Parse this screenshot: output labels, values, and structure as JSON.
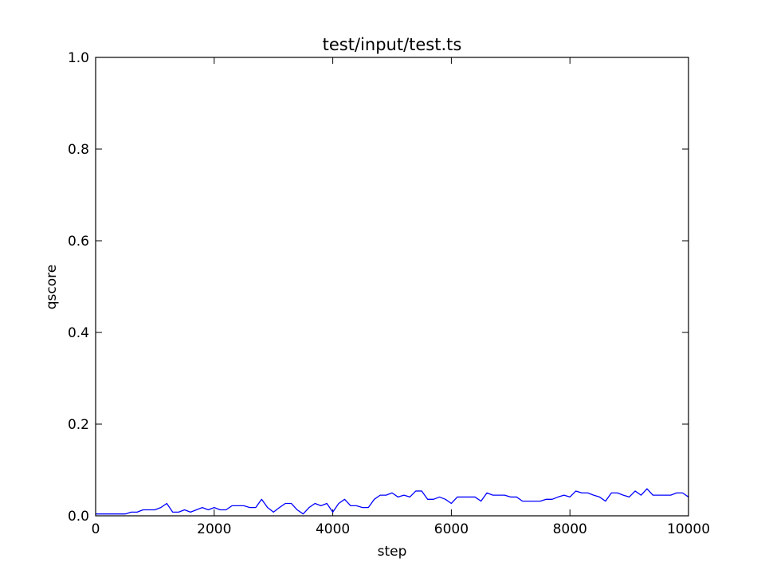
{
  "chart_data": {
    "type": "line",
    "title": "test/input/test.ts",
    "xlabel": "step",
    "ylabel": "qscore",
    "xlim": [
      0,
      10000
    ],
    "ylim": [
      0,
      1.0
    ],
    "xticks": [
      0,
      2000,
      4000,
      6000,
      8000,
      10000
    ],
    "xtick_labels": [
      "0",
      "2000",
      "4000",
      "6000",
      "8000",
      "10000"
    ],
    "yticks": [
      0,
      0.2,
      0.4,
      0.6,
      0.8,
      1.0
    ],
    "ytick_labels": [
      "0.0",
      "0.2",
      "0.4",
      "0.6",
      "0.8",
      "1.0"
    ],
    "grid": false,
    "line_color": "#0000ff",
    "series": [
      {
        "x": [
          0,
          100,
          200,
          300,
          400,
          500,
          600,
          700,
          800,
          900,
          1000,
          1100,
          1200,
          1300,
          1400,
          1500,
          1600,
          1700,
          1800,
          1900,
          2000,
          2100,
          2200,
          2300,
          2400,
          2500,
          2600,
          2700,
          2800,
          2900,
          3000,
          3100,
          3200,
          3300,
          3400,
          3500,
          3600,
          3700,
          3800,
          3900,
          4000,
          4100,
          4200,
          4300,
          4400,
          4500,
          4600,
          4700,
          4800,
          4900,
          5000,
          5100,
          5200,
          5300,
          5400,
          5500,
          5600,
          5700,
          5800,
          5900,
          6000,
          6100,
          6200,
          6300,
          6400,
          6500,
          6600,
          6700,
          6800,
          6900,
          7000,
          7100,
          7200,
          7300,
          7400,
          7500,
          7600,
          7700,
          7800,
          7900,
          8000,
          8100,
          8200,
          8300,
          8400,
          8500,
          8600,
          8700,
          8800,
          8900,
          9000,
          9100,
          9200,
          9300,
          9400,
          9500,
          9600,
          9700,
          9800,
          9900,
          10000
        ],
        "values": [
          0.004,
          0.004,
          0.004,
          0.004,
          0.004,
          0.004,
          0.008,
          0.008,
          0.013,
          0.013,
          0.013,
          0.018,
          0.027,
          0.008,
          0.008,
          0.013,
          0.008,
          0.013,
          0.018,
          0.013,
          0.018,
          0.013,
          0.013,
          0.022,
          0.022,
          0.022,
          0.018,
          0.018,
          0.036,
          0.018,
          0.008,
          0.018,
          0.027,
          0.027,
          0.013,
          0.004,
          0.018,
          0.027,
          0.022,
          0.027,
          0.008,
          0.027,
          0.036,
          0.022,
          0.022,
          0.018,
          0.018,
          0.036,
          0.045,
          0.045,
          0.05,
          0.041,
          0.045,
          0.041,
          0.054,
          0.054,
          0.036,
          0.036,
          0.041,
          0.036,
          0.027,
          0.041,
          0.041,
          0.041,
          0.041,
          0.032,
          0.05,
          0.045,
          0.045,
          0.045,
          0.041,
          0.041,
          0.032,
          0.032,
          0.032,
          0.032,
          0.036,
          0.036,
          0.041,
          0.045,
          0.041,
          0.054,
          0.05,
          0.05,
          0.045,
          0.041,
          0.032,
          0.05,
          0.05,
          0.045,
          0.041,
          0.054,
          0.045,
          0.059,
          0.045,
          0.045,
          0.045,
          0.045,
          0.05,
          0.05,
          0.041
        ]
      }
    ]
  }
}
